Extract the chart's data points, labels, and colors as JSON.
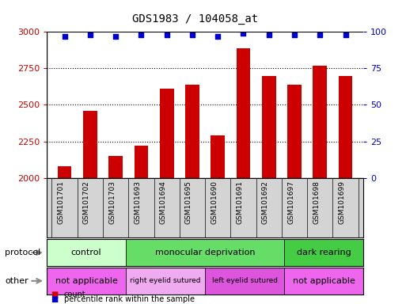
{
  "title": "GDS1983 / 104058_at",
  "samples": [
    "GSM101701",
    "GSM101702",
    "GSM101703",
    "GSM101693",
    "GSM101694",
    "GSM101695",
    "GSM101690",
    "GSM101691",
    "GSM101692",
    "GSM101697",
    "GSM101698",
    "GSM101699"
  ],
  "bar_values": [
    2080,
    2460,
    2150,
    2220,
    2610,
    2640,
    2290,
    2890,
    2700,
    2640,
    2770,
    2700
  ],
  "percentile_values": [
    97,
    98,
    97,
    98,
    98,
    98,
    97,
    99,
    98,
    98,
    98,
    98
  ],
  "bar_color": "#cc0000",
  "dot_color": "#0000cc",
  "ylim_left": [
    2000,
    3000
  ],
  "ylim_right": [
    0,
    100
  ],
  "yticks_left": [
    2000,
    2250,
    2500,
    2750,
    3000
  ],
  "yticks_right": [
    0,
    25,
    50,
    75,
    100
  ],
  "protocol_groups": [
    {
      "label": "control",
      "start": 0,
      "end": 3,
      "color": "#ccffcc"
    },
    {
      "label": "monocular deprivation",
      "start": 3,
      "end": 9,
      "color": "#66dd66"
    },
    {
      "label": "dark rearing",
      "start": 9,
      "end": 12,
      "color": "#44cc44"
    }
  ],
  "other_groups": [
    {
      "label": "not applicable",
      "start": 0,
      "end": 3,
      "color": "#ee66ee"
    },
    {
      "label": "right eyelid sutured",
      "start": 3,
      "end": 6,
      "color": "#f0aaf0"
    },
    {
      "label": "left eyelid sutured",
      "start": 6,
      "end": 9,
      "color": "#dd55dd"
    },
    {
      "label": "not applicable",
      "start": 9,
      "end": 12,
      "color": "#ee66ee"
    }
  ],
  "protocol_label": "protocol",
  "other_label": "other",
  "legend_count_label": "count",
  "legend_percentile_label": "percentile rank within the sample",
  "background_color": "#ffffff",
  "grid_color": "#000000",
  "title_fontsize": 10,
  "tick_fontsize": 8,
  "label_fontsize": 8,
  "xlabels_bg": "#d4d4d4"
}
